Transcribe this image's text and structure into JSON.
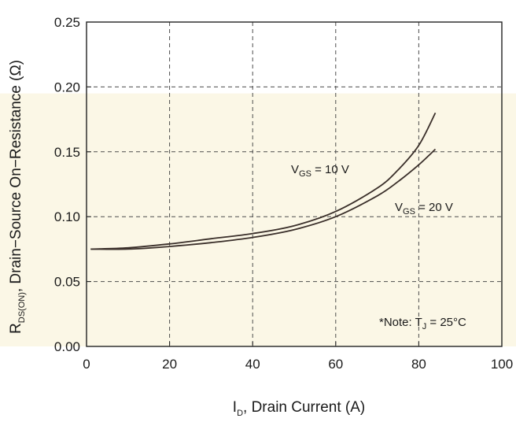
{
  "chart_data": {
    "type": "line",
    "xlabel_main": "I",
    "xlabel_sub": "D",
    "xlabel_rest": ", Drain Current (A)",
    "ylabel_main": "R",
    "ylabel_sub": "DS(ON)",
    "ylabel_rest": ", Drain−Source On−Resistance (Ω)",
    "xlim": [
      0,
      100
    ],
    "ylim": [
      0.0,
      0.25
    ],
    "x_ticks": [
      "0",
      "20",
      "40",
      "60",
      "80",
      "100"
    ],
    "y_ticks": [
      "0.00",
      "0.05",
      "0.10",
      "0.15",
      "0.20",
      "0.25"
    ],
    "grid": true,
    "series": [
      {
        "name": "VGS = 10 V",
        "name_main": "V",
        "name_sub": "GS",
        "name_rest": " = 10 V",
        "x": [
          1,
          10,
          20,
          30,
          40,
          50,
          60,
          70,
          75,
          80,
          84
        ],
        "y": [
          0.075,
          0.076,
          0.079,
          0.083,
          0.087,
          0.093,
          0.104,
          0.122,
          0.136,
          0.155,
          0.18
        ]
      },
      {
        "name": "VGS = 20 V",
        "name_main": "V",
        "name_sub": "GS",
        "name_rest": " = 20 V",
        "x": [
          1,
          10,
          20,
          30,
          40,
          50,
          60,
          70,
          75,
          80,
          84
        ],
        "y": [
          0.075,
          0.075,
          0.077,
          0.08,
          0.084,
          0.09,
          0.1,
          0.116,
          0.127,
          0.14,
          0.152
        ]
      }
    ],
    "note_main": "*Note: T",
    "note_sub": "J",
    "note_rest": " = 25°C"
  }
}
